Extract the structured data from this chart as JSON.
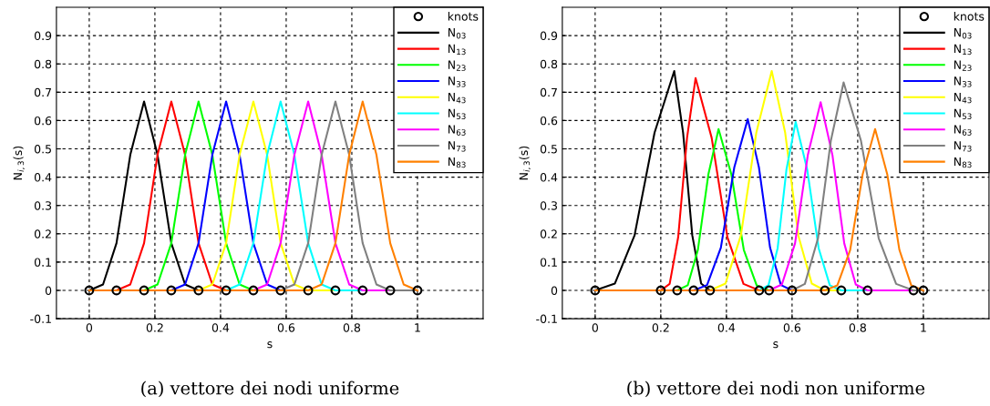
{
  "chart_data": [
    {
      "type": "line",
      "xlabel": "s",
      "ylabel": "N$_{i,3}$(s)",
      "xlim": [
        -0.1,
        1.2
      ],
      "ylim": [
        -0.1,
        1.0
      ],
      "xticks": [
        0,
        0.2,
        0.4,
        0.6,
        0.8,
        1
      ],
      "yticks": [
        -0.1,
        0,
        0.1,
        0.2,
        0.3,
        0.4,
        0.5,
        0.6,
        0.7,
        0.8,
        0.9
      ],
      "grid": true,
      "legend": "top right",
      "line_style": "solid",
      "annotations": [
        "(a) vettore dei nodi uniforme"
      ],
      "series": [
        {
          "name": "knots",
          "type": "scatter",
          "marker": "circle",
          "color": "#000000",
          "x": [
            0,
            0.083,
            0.167,
            0.25,
            0.333,
            0.417,
            0.5,
            0.583,
            0.667,
            0.75,
            0.833,
            0.917,
            1
          ],
          "values": [
            0,
            0,
            0,
            0,
            0,
            0,
            0,
            0,
            0,
            0,
            0,
            0,
            0
          ]
        },
        {
          "name": "N$_{03}$",
          "color": "#000000",
          "x": [
            0,
            0.042,
            0.083,
            0.125,
            0.167,
            0.208,
            0.25,
            0.292,
            0.333,
            1
          ],
          "values": [
            0,
            0.021,
            0.167,
            0.479,
            0.667,
            0.479,
            0.167,
            0.021,
            0,
            0
          ]
        },
        {
          "name": "N$_{13}$",
          "color": "#ff0000",
          "x": [
            0,
            0.083,
            0.125,
            0.167,
            0.208,
            0.25,
            0.292,
            0.333,
            0.375,
            0.417,
            1
          ],
          "values": [
            0,
            0,
            0.021,
            0.167,
            0.479,
            0.667,
            0.479,
            0.167,
            0.021,
            0,
            0
          ]
        },
        {
          "name": "N$_{23}$",
          "color": "#00ff00",
          "x": [
            0,
            0.167,
            0.208,
            0.25,
            0.292,
            0.333,
            0.375,
            0.417,
            0.458,
            0.5,
            1
          ],
          "values": [
            0,
            0,
            0.021,
            0.167,
            0.479,
            0.667,
            0.479,
            0.167,
            0.021,
            0,
            0
          ]
        },
        {
          "name": "N$_{33}$",
          "color": "#0000ff",
          "x": [
            0,
            0.25,
            0.292,
            0.333,
            0.375,
            0.417,
            0.458,
            0.5,
            0.542,
            0.583,
            1
          ],
          "values": [
            0,
            0,
            0.021,
            0.167,
            0.479,
            0.667,
            0.479,
            0.167,
            0.021,
            0,
            0
          ]
        },
        {
          "name": "N$_{43}$",
          "color": "#ffff00",
          "x": [
            0,
            0.333,
            0.375,
            0.417,
            0.458,
            0.5,
            0.542,
            0.583,
            0.625,
            0.667,
            1
          ],
          "values": [
            0,
            0,
            0.021,
            0.167,
            0.479,
            0.667,
            0.479,
            0.167,
            0.021,
            0,
            0
          ]
        },
        {
          "name": "N$_{53}$",
          "color": "#00ffff",
          "x": [
            0,
            0.417,
            0.458,
            0.5,
            0.542,
            0.583,
            0.625,
            0.667,
            0.708,
            0.75,
            1
          ],
          "values": [
            0,
            0,
            0.021,
            0.167,
            0.479,
            0.667,
            0.479,
            0.167,
            0.021,
            0,
            0
          ]
        },
        {
          "name": "N$_{63}$",
          "color": "#ff00ff",
          "x": [
            0,
            0.5,
            0.542,
            0.583,
            0.625,
            0.667,
            0.708,
            0.75,
            0.792,
            0.833,
            1
          ],
          "values": [
            0,
            0,
            0.021,
            0.167,
            0.479,
            0.667,
            0.479,
            0.167,
            0.021,
            0,
            0
          ]
        },
        {
          "name": "N$_{73}$",
          "color": "#808080",
          "x": [
            0,
            0.583,
            0.625,
            0.667,
            0.708,
            0.75,
            0.792,
            0.833,
            0.875,
            0.917,
            1
          ],
          "values": [
            0,
            0,
            0.021,
            0.167,
            0.479,
            0.667,
            0.479,
            0.167,
            0.021,
            0,
            0
          ]
        },
        {
          "name": "N$_{83}$",
          "color": "#ff8000",
          "x": [
            0,
            0.667,
            0.708,
            0.75,
            0.792,
            0.833,
            0.875,
            0.917,
            0.958,
            1
          ],
          "values": [
            0,
            0,
            0.021,
            0.167,
            0.479,
            0.667,
            0.479,
            0.167,
            0.021,
            0
          ]
        }
      ]
    },
    {
      "type": "line",
      "xlabel": "s",
      "ylabel": "N$_{i,3}$(s)",
      "xlim": [
        -0.1,
        1.2
      ],
      "ylim": [
        -0.1,
        1.0
      ],
      "xticks": [
        0,
        0.2,
        0.4,
        0.6,
        0.8,
        1
      ],
      "yticks": [
        -0.1,
        0,
        0.1,
        0.2,
        0.3,
        0.4,
        0.5,
        0.6,
        0.7,
        0.8,
        0.9
      ],
      "grid": true,
      "legend": "top right",
      "line_style": "solid",
      "annotations": [
        "(b) vettore dei nodi non uniforme"
      ],
      "series": [
        {
          "name": "knots",
          "type": "scatter",
          "marker": "circle",
          "color": "#000000",
          "x": [
            0,
            0.2,
            0.25,
            0.3,
            0.35,
            0.5,
            0.53,
            0.6,
            0.7,
            0.75,
            0.83,
            0.97,
            1
          ],
          "values": [
            0,
            0,
            0,
            0,
            0,
            0,
            0,
            0,
            0,
            0,
            0,
            0,
            0
          ]
        },
        {
          "name": "N$_{03}$",
          "color": "#000000",
          "x": [
            0,
            0.06,
            0.12,
            0.181,
            0.241,
            0.268,
            0.296,
            0.323,
            0.35,
            1
          ],
          "values": [
            0,
            0.024,
            0.194,
            0.557,
            0.775,
            0.557,
            0.194,
            0.024,
            0,
            0
          ]
        },
        {
          "name": "N$_{13}$",
          "color": "#ff0000",
          "x": [
            0,
            0.2,
            0.227,
            0.253,
            0.28,
            0.306,
            0.355,
            0.403,
            0.452,
            0.5,
            1
          ],
          "values": [
            0,
            0,
            0.023,
            0.188,
            0.539,
            0.75,
            0.539,
            0.188,
            0.023,
            0,
            0
          ]
        },
        {
          "name": "N$_{23}$",
          "color": "#00ff00",
          "x": [
            0,
            0.25,
            0.282,
            0.313,
            0.345,
            0.376,
            0.415,
            0.453,
            0.492,
            0.53,
            1
          ],
          "values": [
            0,
            0,
            0.018,
            0.143,
            0.41,
            0.57,
            0.41,
            0.143,
            0.018,
            0,
            0
          ]
        },
        {
          "name": "N$_{33}$",
          "color": "#0000ff",
          "x": [
            0,
            0.3,
            0.341,
            0.383,
            0.424,
            0.465,
            0.499,
            0.533,
            0.566,
            0.6,
            1
          ],
          "values": [
            0,
            0,
            0.019,
            0.151,
            0.435,
            0.605,
            0.435,
            0.151,
            0.019,
            0,
            0
          ]
        },
        {
          "name": "N$_{43}$",
          "color": "#ffff00",
          "x": [
            0,
            0.35,
            0.397,
            0.444,
            0.491,
            0.538,
            0.579,
            0.619,
            0.66,
            0.7,
            1
          ],
          "values": [
            0,
            0,
            0.024,
            0.194,
            0.557,
            0.775,
            0.557,
            0.194,
            0.024,
            0,
            0
          ]
        },
        {
          "name": "N$_{53}$",
          "color": "#00ffff",
          "x": [
            0,
            0.5,
            0.528,
            0.556,
            0.583,
            0.611,
            0.646,
            0.681,
            0.715,
            0.75,
            1
          ],
          "values": [
            0,
            0,
            0.018,
            0.149,
            0.428,
            0.595,
            0.428,
            0.149,
            0.018,
            0,
            0
          ]
        },
        {
          "name": "N$_{63}$",
          "color": "#ff00ff",
          "x": [
            0,
            0.53,
            0.569,
            0.609,
            0.648,
            0.687,
            0.723,
            0.759,
            0.794,
            0.83,
            1
          ],
          "values": [
            0,
            0,
            0.021,
            0.166,
            0.478,
            0.665,
            0.478,
            0.166,
            0.021,
            0,
            0
          ]
        },
        {
          "name": "N$_{73}$",
          "color": "#808080",
          "x": [
            0,
            0.6,
            0.639,
            0.679,
            0.718,
            0.757,
            0.81,
            0.864,
            0.917,
            0.97,
            1
          ],
          "values": [
            0,
            0,
            0.023,
            0.184,
            0.528,
            0.735,
            0.528,
            0.184,
            0.023,
            0,
            0
          ]
        },
        {
          "name": "N$_{83}$",
          "color": "#ff8000",
          "x": [
            0,
            0.7,
            0.738,
            0.777,
            0.815,
            0.853,
            0.89,
            0.927,
            0.963,
            1
          ],
          "values": [
            0,
            0,
            0.018,
            0.143,
            0.41,
            0.57,
            0.41,
            0.143,
            0.018,
            0
          ]
        }
      ]
    }
  ]
}
